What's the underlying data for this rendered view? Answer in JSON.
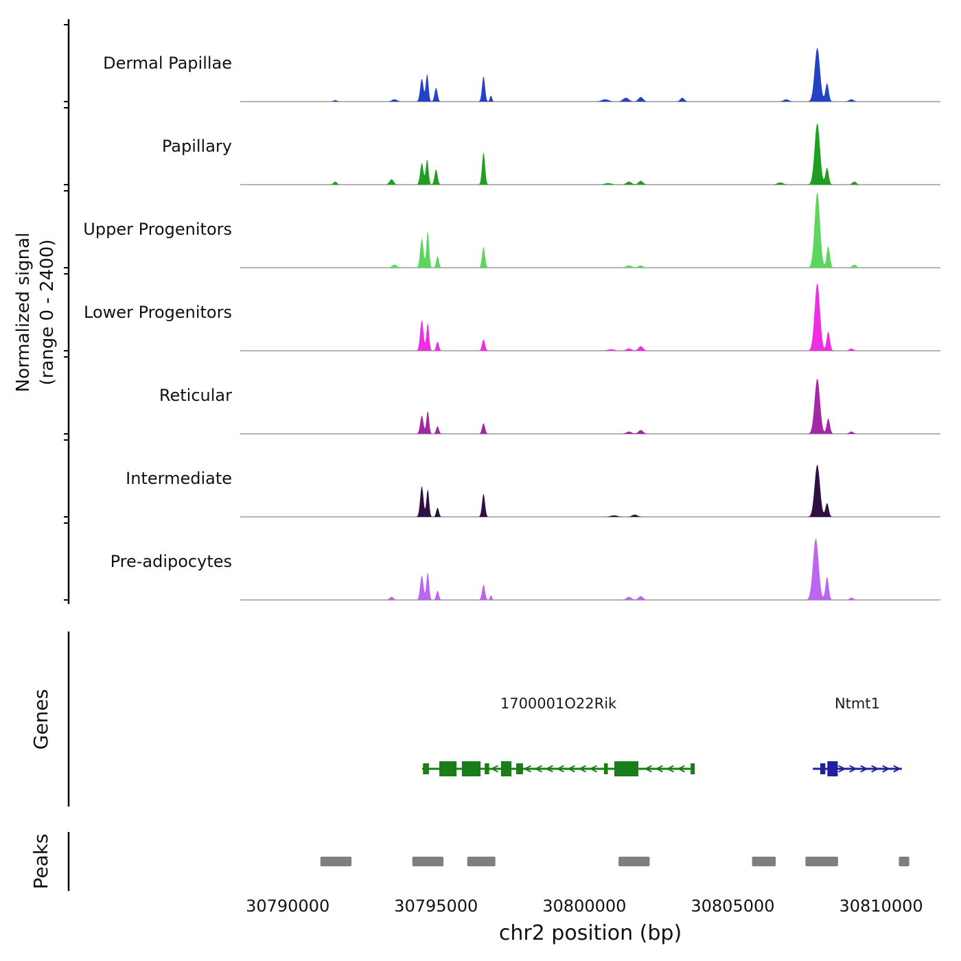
{
  "figure": {
    "ylabel": "Normalized signal\n(range 0 - 2400)",
    "xlabel": "chr2 position (bp)",
    "genes_section_label": "Genes",
    "peaks_section_label": "Peaks"
  },
  "chart_data": {
    "type": "area",
    "title": "",
    "xlabel": "chr2 position (bp)",
    "ylabel": "Normalized signal (range 0 - 2400)",
    "signal_range": [
      0,
      2400
    ],
    "x_domain": [
      30788400,
      30812000
    ],
    "x_ticks": [
      30790000,
      30795000,
      30800000,
      30805000,
      30810000
    ],
    "tracks": [
      {
        "label": "Dermal Papillae",
        "color": "#2244c4",
        "peaks": [
          [
            30791600,
            60,
            0.02
          ],
          [
            30793600,
            90,
            0.03
          ],
          [
            30794520,
            55,
            0.3
          ],
          [
            30794700,
            45,
            0.36
          ],
          [
            30795000,
            50,
            0.18
          ],
          [
            30796600,
            50,
            0.33
          ],
          [
            30796850,
            35,
            0.08
          ],
          [
            30800700,
            120,
            0.03
          ],
          [
            30801400,
            100,
            0.05
          ],
          [
            30801900,
            80,
            0.06
          ],
          [
            30803300,
            70,
            0.05
          ],
          [
            30806800,
            90,
            0.03
          ],
          [
            30807850,
            90,
            0.7
          ],
          [
            30808180,
            55,
            0.24
          ],
          [
            30809000,
            80,
            0.03
          ]
        ]
      },
      {
        "label": "Papillary",
        "color": "#1f9e1f",
        "peaks": [
          [
            30791600,
            60,
            0.04
          ],
          [
            30793500,
            70,
            0.07
          ],
          [
            30794520,
            55,
            0.28
          ],
          [
            30794700,
            45,
            0.33
          ],
          [
            30795000,
            50,
            0.2
          ],
          [
            30796600,
            50,
            0.42
          ],
          [
            30800800,
            120,
            0.02
          ],
          [
            30801500,
            90,
            0.04
          ],
          [
            30801900,
            80,
            0.05
          ],
          [
            30806600,
            100,
            0.03
          ],
          [
            30807850,
            90,
            0.8
          ],
          [
            30808180,
            55,
            0.22
          ],
          [
            30809100,
            70,
            0.04
          ]
        ]
      },
      {
        "label": "Upper Progenitors",
        "color": "#5cd65c",
        "peaks": [
          [
            30793600,
            80,
            0.04
          ],
          [
            30794520,
            55,
            0.38
          ],
          [
            30794720,
            45,
            0.48
          ],
          [
            30795050,
            45,
            0.15
          ],
          [
            30796600,
            50,
            0.27
          ],
          [
            30801500,
            100,
            0.03
          ],
          [
            30801900,
            80,
            0.03
          ],
          [
            30807850,
            90,
            0.98
          ],
          [
            30808220,
            55,
            0.28
          ],
          [
            30809100,
            70,
            0.04
          ]
        ]
      },
      {
        "label": "Lower Progenitors",
        "color": "#ee2ee0",
        "peaks": [
          [
            30794520,
            55,
            0.4
          ],
          [
            30794720,
            45,
            0.36
          ],
          [
            30795050,
            45,
            0.12
          ],
          [
            30796600,
            50,
            0.15
          ],
          [
            30800900,
            120,
            0.02
          ],
          [
            30801500,
            90,
            0.03
          ],
          [
            30801900,
            80,
            0.06
          ],
          [
            30807850,
            90,
            0.88
          ],
          [
            30808220,
            55,
            0.25
          ],
          [
            30809000,
            70,
            0.03
          ]
        ]
      },
      {
        "label": "Reticular",
        "color": "#a329a3",
        "peaks": [
          [
            30794520,
            55,
            0.24
          ],
          [
            30794720,
            45,
            0.3
          ],
          [
            30795050,
            45,
            0.1
          ],
          [
            30796600,
            50,
            0.14
          ],
          [
            30801500,
            90,
            0.03
          ],
          [
            30801900,
            80,
            0.05
          ],
          [
            30807850,
            90,
            0.72
          ],
          [
            30808220,
            55,
            0.2
          ],
          [
            30809000,
            70,
            0.03
          ]
        ]
      },
      {
        "label": "Intermediate",
        "color": "#2e1045",
        "peaks": [
          [
            30794520,
            55,
            0.4
          ],
          [
            30794720,
            45,
            0.36
          ],
          [
            30795050,
            45,
            0.12
          ],
          [
            30796600,
            50,
            0.3
          ],
          [
            30801000,
            120,
            0.02
          ],
          [
            30801700,
            90,
            0.03
          ],
          [
            30807850,
            90,
            0.68
          ],
          [
            30808180,
            55,
            0.18
          ]
        ]
      },
      {
        "label": "Pre-adipocytes",
        "color": "#bb66ee",
        "peaks": [
          [
            30793500,
            70,
            0.04
          ],
          [
            30794520,
            55,
            0.32
          ],
          [
            30794720,
            45,
            0.36
          ],
          [
            30795050,
            45,
            0.12
          ],
          [
            30796600,
            50,
            0.2
          ],
          [
            30796850,
            35,
            0.06
          ],
          [
            30801500,
            90,
            0.04
          ],
          [
            30801900,
            80,
            0.05
          ],
          [
            30807800,
            95,
            0.8
          ],
          [
            30808180,
            55,
            0.3
          ],
          [
            30809000,
            70,
            0.03
          ]
        ]
      }
    ],
    "genes": [
      {
        "name": "1700001O22Rik",
        "color": "#1a7d1a",
        "strand": "-",
        "start": 30794530,
        "end": 30803720,
        "exons": [
          [
            30794560,
            30794760,
            16
          ],
          [
            30795110,
            30795690,
            22
          ],
          [
            30795870,
            30796500,
            22
          ],
          [
            30796640,
            30796790,
            16
          ],
          [
            30797190,
            30797540,
            22
          ],
          [
            30797700,
            30797930,
            16
          ],
          [
            30800660,
            30800790,
            16
          ],
          [
            30801010,
            30801820,
            22
          ],
          [
            30803580,
            30803720,
            16
          ]
        ]
      },
      {
        "name": "Ntmt1",
        "color": "#2020a0",
        "strand": "+",
        "start": 30807700,
        "end": 30810700,
        "exons": [
          [
            30807950,
            30808120,
            16
          ],
          [
            30808190,
            30808540,
            22
          ]
        ]
      }
    ],
    "peak_regions": [
      [
        30791100,
        30792150
      ],
      [
        30794200,
        30795250
      ],
      [
        30796050,
        30797000
      ],
      [
        30801150,
        30802200
      ],
      [
        30805650,
        30806450
      ],
      [
        30807450,
        30808550
      ],
      [
        30810600,
        30810950
      ]
    ],
    "peak_color": "#7f7f7f",
    "legend_position": "none",
    "grid": false
  }
}
